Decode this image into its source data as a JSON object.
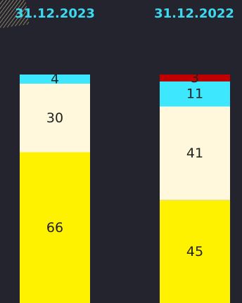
{
  "chart_data": {
    "type": "bar",
    "stacked": true,
    "orientation": "vertical",
    "categories": [
      "31.12.2023",
      "31.12.2022"
    ],
    "series": [
      {
        "color": "#fff200",
        "values": [
          66,
          45
        ]
      },
      {
        "color": "#fff8dc",
        "values": [
          30,
          41
        ]
      },
      {
        "color": "#3de8ff",
        "values": [
          4,
          11
        ]
      },
      {
        "color": "#c00000",
        "values": [
          null,
          3
        ]
      }
    ],
    "value_labels": [
      [
        "66",
        "45"
      ],
      [
        "30",
        "41"
      ],
      [
        "4",
        "11"
      ],
      [
        "",
        "3"
      ]
    ],
    "ylim": [
      0,
      100
    ],
    "grid": false,
    "legend": "none",
    "category_label_color": "#3dd9f0",
    "label_text_color": "#222222",
    "background": "#24242f"
  }
}
